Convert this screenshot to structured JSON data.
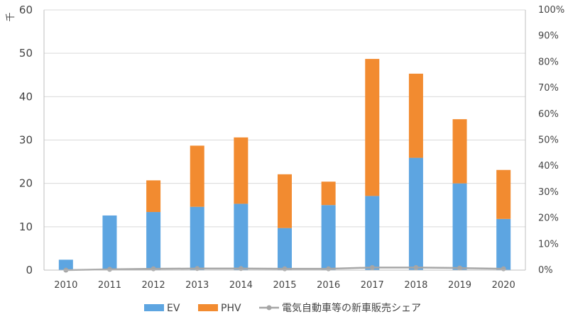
{
  "chart_data": {
    "type": "bar",
    "stacked": true,
    "categories": [
      "2010",
      "2011",
      "2012",
      "2013",
      "2014",
      "2015",
      "2016",
      "2017",
      "2018",
      "2019",
      "2020"
    ],
    "series": [
      {
        "name": "EV",
        "type": "bar",
        "axis": "left",
        "color": "#5DA5E1",
        "values": [
          2.4,
          12.6,
          13.4,
          14.6,
          15.3,
          9.7,
          15.0,
          17.1,
          25.9,
          20.0,
          11.8
        ]
      },
      {
        "name": "PHV",
        "type": "bar",
        "axis": "left",
        "color": "#F28B30",
        "values": [
          0.0,
          0.0,
          7.3,
          14.1,
          15.3,
          12.4,
          5.4,
          31.6,
          19.4,
          14.8,
          11.3
        ]
      },
      {
        "name": "電気自動車等の新車販売シェア",
        "type": "line",
        "axis": "right",
        "color": "#A6A6A6",
        "values": [
          0.0,
          0.3,
          0.5,
          0.6,
          0.6,
          0.5,
          0.5,
          1.0,
          1.0,
          0.8,
          0.5
        ]
      }
    ],
    "left_axis": {
      "unit": "千",
      "min": 0,
      "max": 60,
      "ticks": [
        "0",
        "10",
        "20",
        "30",
        "40",
        "50",
        "60"
      ]
    },
    "right_axis": {
      "min": 0,
      "max": 100,
      "ticks": [
        "0%",
        "10%",
        "20%",
        "30%",
        "40%",
        "50%",
        "60%",
        "70%",
        "80%",
        "90%",
        "100%"
      ]
    },
    "grid": true,
    "legend_position": "bottom-center"
  }
}
